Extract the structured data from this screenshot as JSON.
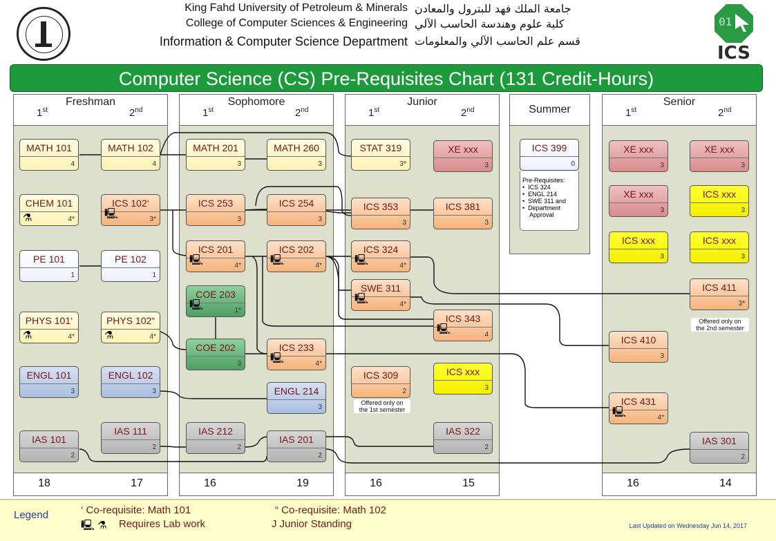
{
  "header": {
    "en_line1": "King Fahd University of Petroleum & Minerals",
    "en_line2": "College of Computer Sciences & Engineering",
    "en_line3": "Information & Computer Science Department",
    "ar_line1": "جامعة الملك فهد للبترول والمعادن",
    "ar_line2": "كلية علوم وهندسة الحاسب الآلي",
    "ar_line3": "قسم علم الحاسب الآلي والمعلومات",
    "logo_right_digits": "01",
    "logo_right_text": "ICS"
  },
  "title": "Computer Science (CS) Pre-Requisites Chart (131 Credit-Hours)",
  "years": {
    "freshman": "Freshman",
    "sophomore": "Sophomore",
    "junior": "Junior",
    "summer": "Summer",
    "senior": "Senior"
  },
  "semesters": {
    "first": "1",
    "first_sup": "st",
    "second": "2",
    "second_sup": "nd"
  },
  "totals": {
    "fr1": "18",
    "fr2": "17",
    "so1": "16",
    "so2": "19",
    "ju1": "16",
    "ju2": "15",
    "se1": "16",
    "se2": "14"
  },
  "courses": {
    "math101": {
      "name": "MATH 101",
      "cr": "4"
    },
    "math102": {
      "name": "MATH 102",
      "cr": "4"
    },
    "chem101": {
      "name": "CHEM 101",
      "cr": "4*"
    },
    "ics102": {
      "name": "ICS 102‘",
      "cr": "3*"
    },
    "pe101": {
      "name": "PE 101",
      "cr": "1"
    },
    "pe102": {
      "name": "PE 102",
      "cr": "1"
    },
    "phys101": {
      "name": "PHYS 101‘",
      "cr": "4*"
    },
    "phys102": {
      "name": "PHYS 102“",
      "cr": "4*"
    },
    "engl101": {
      "name": "ENGL 101",
      "cr": "3"
    },
    "engl102": {
      "name": "ENGL 102",
      "cr": "3"
    },
    "ias101": {
      "name": "IAS 101",
      "cr": "2"
    },
    "ias111": {
      "name": "IAS 111",
      "cr": "2"
    },
    "math201": {
      "name": "MATH 201",
      "cr": "3"
    },
    "math260": {
      "name": "MATH 260",
      "cr": "3"
    },
    "ics253": {
      "name": "ICS 253",
      "cr": "3"
    },
    "ics254": {
      "name": "ICS 254",
      "cr": "3"
    },
    "ics201": {
      "name": "ICS 201",
      "cr": "4*"
    },
    "ics202": {
      "name": "ICS 202",
      "cr": "4*"
    },
    "coe203": {
      "name": "COE 203",
      "cr": "1*"
    },
    "coe202": {
      "name": "COE 202",
      "cr": "3"
    },
    "ics233": {
      "name": "ICS 233",
      "cr": "4*"
    },
    "engl214": {
      "name": "ENGL 214",
      "cr": "3"
    },
    "ias212": {
      "name": "IAS 212",
      "cr": "2"
    },
    "ias201": {
      "name": "IAS 201",
      "cr": "2"
    },
    "stat319": {
      "name": "STAT 319",
      "cr": "3*"
    },
    "xe_j2": {
      "name": "XE xxx",
      "cr": "3"
    },
    "ics353": {
      "name": "ICS 353",
      "cr": "3"
    },
    "ics381": {
      "name": "ICS 381",
      "cr": "3"
    },
    "ics324": {
      "name": "ICS 324",
      "cr": "4*"
    },
    "swe311": {
      "name": "SWE 311",
      "cr": "4*"
    },
    "ics343": {
      "name": "ICS 343",
      "cr": "4"
    },
    "ics309": {
      "name": "ICS 309",
      "cr": "2"
    },
    "icsxxx_j2": {
      "name": "ICS xxx",
      "cr": "3"
    },
    "ias322": {
      "name": "IAS 322",
      "cr": "2"
    },
    "ics399": {
      "name": "ICS 399",
      "cr": "0"
    },
    "xe_s1a": {
      "name": "XE xxx",
      "cr": "3"
    },
    "xe_s2a": {
      "name": "XE xxx",
      "cr": "3"
    },
    "xe_s1b": {
      "name": "XE xxx",
      "cr": "3"
    },
    "icsxxx_s2a": {
      "name": "ICS xxx",
      "cr": "3"
    },
    "icsxxx_s1": {
      "name": "ICS xxx",
      "cr": "3"
    },
    "icsxxx_s2b": {
      "name": "ICS xxx",
      "cr": "3"
    },
    "ics411": {
      "name": "ICS 411",
      "cr": "3*"
    },
    "ics410": {
      "name": "ICS 410",
      "cr": "3"
    },
    "ics431": {
      "name": "ICS 431",
      "cr": "4*"
    },
    "ias301": {
      "name": "IAS 301",
      "cr": "2"
    }
  },
  "notes": {
    "ics309_a": "Offered only on",
    "ics309_b": "the 1st semester",
    "ics411_a": "Offered only on",
    "ics411_b": "the 2nd semester",
    "ics399_title": "Pre-Requisites:",
    "ics399_items": [
      "ICS 324",
      "ENGL 214",
      "SWE 311 and",
      "Department",
      "Approval"
    ]
  },
  "legend": {
    "title": "Legend",
    "coreq1": "‘ Co-requisite: Math 101",
    "coreq2": "“ Co-requisite: Math 102",
    "lab": "Requires Lab work",
    "junior": "J Junior Standing",
    "updated": "Last Updated on Wednesday Jun 14, 2017"
  }
}
